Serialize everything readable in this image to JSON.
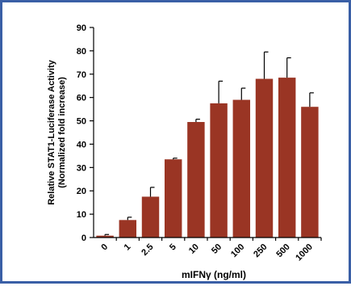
{
  "chart_data": {
    "type": "bar",
    "title": "",
    "xlabel": "mIFNγ (ng/ml)",
    "ylabel_line1": "Relative STAT1-Luciferase Activity",
    "ylabel_line2": "(Normalized fold increase)",
    "categories": [
      "0",
      "1",
      "2.5",
      "5",
      "10",
      "50",
      "100",
      "250",
      "500",
      "1000"
    ],
    "values": [
      0.8,
      7.5,
      17.5,
      33.5,
      49.5,
      57.5,
      59,
      68,
      68.5,
      56
    ],
    "errors": [
      0.5,
      1.2,
      4,
      0.5,
      1.2,
      9.5,
      5,
      11.5,
      8.5,
      6
    ],
    "ylim": [
      0,
      90
    ],
    "yticks": [
      0,
      10,
      20,
      30,
      40,
      50,
      60,
      70,
      80,
      90
    ],
    "bar_color": "#9a3524",
    "grid": false,
    "legend": "none"
  },
  "frame_color": "#3a5fa6"
}
